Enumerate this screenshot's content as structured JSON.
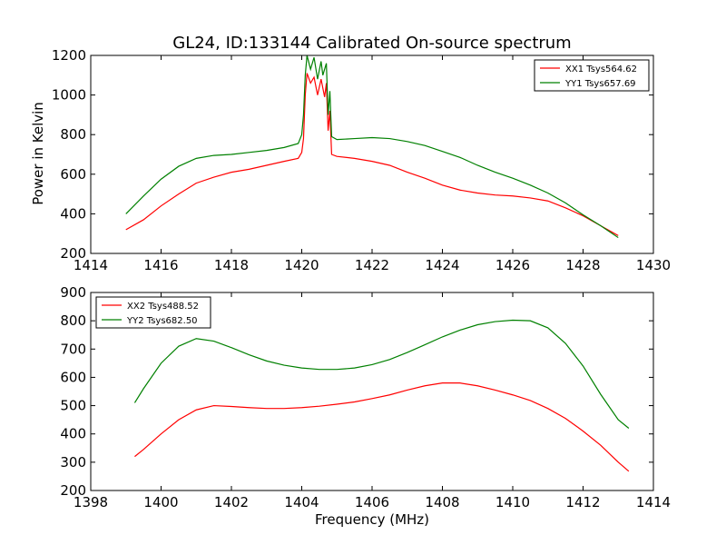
{
  "figure": {
    "title": "GL24, ID:133144 Calibrated On-source spectrum",
    "ylabel": "Power in Kelvin",
    "xlabel": "Frequency (MHz)"
  },
  "chart_data": [
    {
      "type": "line",
      "title": "GL24, ID:133144 Calibrated On-source spectrum",
      "xlabel": "",
      "ylabel": "Power in Kelvin",
      "xlim": [
        1414,
        1430
      ],
      "ylim": [
        200,
        1200
      ],
      "xticks": [
        1414,
        1416,
        1418,
        1420,
        1422,
        1424,
        1426,
        1428,
        1430
      ],
      "yticks": [
        200,
        400,
        600,
        800,
        1000,
        1200
      ],
      "legend_position": "top-right",
      "series": [
        {
          "name": "XX1 Tsys564.62",
          "color": "#ff0000",
          "points": [
            [
              1415.0,
              320
            ],
            [
              1415.5,
              370
            ],
            [
              1416.0,
              440
            ],
            [
              1416.5,
              500
            ],
            [
              1417.0,
              555
            ],
            [
              1417.5,
              585
            ],
            [
              1418.0,
              610
            ],
            [
              1418.5,
              625
            ],
            [
              1419.0,
              645
            ],
            [
              1419.5,
              665
            ],
            [
              1419.9,
              680
            ],
            [
              1420.0,
              710
            ],
            [
              1420.05,
              780
            ],
            [
              1420.1,
              1000
            ],
            [
              1420.15,
              1110
            ],
            [
              1420.25,
              1060
            ],
            [
              1420.35,
              1090
            ],
            [
              1420.45,
              1000
            ],
            [
              1420.55,
              1080
            ],
            [
              1420.65,
              990
            ],
            [
              1420.7,
              1060
            ],
            [
              1420.75,
              820
            ],
            [
              1420.8,
              920
            ],
            [
              1420.85,
              700
            ],
            [
              1421.0,
              690
            ],
            [
              1421.5,
              680
            ],
            [
              1422.0,
              665
            ],
            [
              1422.5,
              645
            ],
            [
              1423.0,
              610
            ],
            [
              1423.5,
              580
            ],
            [
              1424.0,
              545
            ],
            [
              1424.5,
              520
            ],
            [
              1425.0,
              505
            ],
            [
              1425.5,
              495
            ],
            [
              1426.0,
              490
            ],
            [
              1426.5,
              480
            ],
            [
              1427.0,
              465
            ],
            [
              1427.5,
              430
            ],
            [
              1428.0,
              390
            ],
            [
              1428.5,
              340
            ],
            [
              1429.0,
              290
            ]
          ]
        },
        {
          "name": "YY1 Tsys657.69",
          "color": "#008000",
          "points": [
            [
              1415.0,
              400
            ],
            [
              1415.5,
              490
            ],
            [
              1416.0,
              575
            ],
            [
              1416.5,
              640
            ],
            [
              1417.0,
              680
            ],
            [
              1417.5,
              695
            ],
            [
              1418.0,
              700
            ],
            [
              1418.5,
              710
            ],
            [
              1419.0,
              720
            ],
            [
              1419.5,
              735
            ],
            [
              1419.9,
              755
            ],
            [
              1420.0,
              800
            ],
            [
              1420.05,
              900
            ],
            [
              1420.1,
              1100
            ],
            [
              1420.15,
              1200
            ],
            [
              1420.25,
              1130
            ],
            [
              1420.35,
              1190
            ],
            [
              1420.45,
              1080
            ],
            [
              1420.55,
              1170
            ],
            [
              1420.6,
              1100
            ],
            [
              1420.7,
              1160
            ],
            [
              1420.75,
              900
            ],
            [
              1420.8,
              1020
            ],
            [
              1420.85,
              790
            ],
            [
              1421.0,
              775
            ],
            [
              1421.5,
              780
            ],
            [
              1422.0,
              785
            ],
            [
              1422.5,
              780
            ],
            [
              1423.0,
              765
            ],
            [
              1423.5,
              745
            ],
            [
              1424.0,
              715
            ],
            [
              1424.5,
              685
            ],
            [
              1425.0,
              645
            ],
            [
              1425.5,
              610
            ],
            [
              1426.0,
              580
            ],
            [
              1426.5,
              545
            ],
            [
              1427.0,
              505
            ],
            [
              1427.5,
              455
            ],
            [
              1428.0,
              395
            ],
            [
              1428.5,
              340
            ],
            [
              1429.0,
              280
            ]
          ]
        }
      ]
    },
    {
      "type": "line",
      "title": "",
      "xlabel": "Frequency (MHz)",
      "ylabel": "",
      "xlim": [
        1398,
        1414
      ],
      "ylim": [
        200,
        900
      ],
      "xticks": [
        1398,
        1400,
        1402,
        1404,
        1406,
        1408,
        1410,
        1412,
        1414
      ],
      "yticks": [
        200,
        300,
        400,
        500,
        600,
        700,
        800,
        900
      ],
      "legend_position": "top-left",
      "series": [
        {
          "name": "XX2 Tsys488.52",
          "color": "#ff0000",
          "points": [
            [
              1399.25,
              320
            ],
            [
              1399.5,
              345
            ],
            [
              1400.0,
              400
            ],
            [
              1400.5,
              450
            ],
            [
              1401.0,
              485
            ],
            [
              1401.5,
              500
            ],
            [
              1402.0,
              497
            ],
            [
              1402.5,
              493
            ],
            [
              1403.0,
              490
            ],
            [
              1403.5,
              490
            ],
            [
              1404.0,
              493
            ],
            [
              1404.5,
              498
            ],
            [
              1405.0,
              505
            ],
            [
              1405.5,
              513
            ],
            [
              1406.0,
              525
            ],
            [
              1406.5,
              538
            ],
            [
              1407.0,
              555
            ],
            [
              1407.5,
              570
            ],
            [
              1408.0,
              580
            ],
            [
              1408.5,
              580
            ],
            [
              1409.0,
              570
            ],
            [
              1409.5,
              555
            ],
            [
              1410.0,
              538
            ],
            [
              1410.5,
              518
            ],
            [
              1411.0,
              490
            ],
            [
              1411.5,
              455
            ],
            [
              1412.0,
              410
            ],
            [
              1412.5,
              360
            ],
            [
              1413.0,
              300
            ],
            [
              1413.3,
              268
            ]
          ]
        },
        {
          "name": "YY2 Tsys682.50",
          "color": "#008000",
          "points": [
            [
              1399.25,
              510
            ],
            [
              1399.5,
              560
            ],
            [
              1400.0,
              650
            ],
            [
              1400.5,
              710
            ],
            [
              1401.0,
              737
            ],
            [
              1401.5,
              728
            ],
            [
              1402.0,
              705
            ],
            [
              1402.5,
              680
            ],
            [
              1403.0,
              658
            ],
            [
              1403.5,
              643
            ],
            [
              1404.0,
              633
            ],
            [
              1404.5,
              628
            ],
            [
              1405.0,
              628
            ],
            [
              1405.5,
              633
            ],
            [
              1406.0,
              645
            ],
            [
              1406.5,
              663
            ],
            [
              1407.0,
              688
            ],
            [
              1407.5,
              715
            ],
            [
              1408.0,
              743
            ],
            [
              1408.5,
              767
            ],
            [
              1409.0,
              786
            ],
            [
              1409.5,
              797
            ],
            [
              1410.0,
              802
            ],
            [
              1410.5,
              800
            ],
            [
              1411.0,
              775
            ],
            [
              1411.5,
              720
            ],
            [
              1412.0,
              640
            ],
            [
              1412.5,
              540
            ],
            [
              1413.0,
              450
            ],
            [
              1413.3,
              420
            ]
          ]
        }
      ]
    }
  ]
}
